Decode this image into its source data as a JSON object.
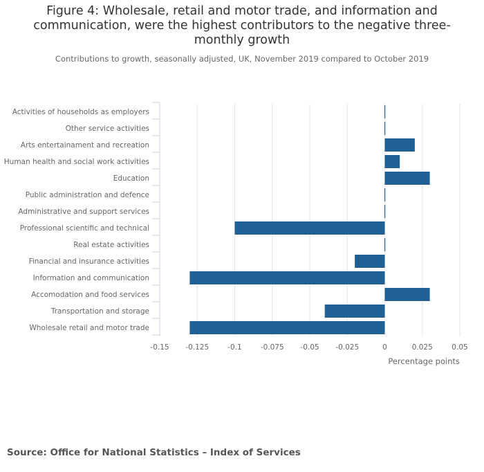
{
  "title": "Figure 4: Wholesale, retail and motor trade, and information and communication, were the highest contributors to the negative three-monthly growth",
  "subtitle": "Contributions to growth, seasonally adjusted, UK, November 2019 compared to October 2019",
  "source": "Source: Office for National Statistics – Index of Services",
  "colors": {
    "bar": "#206095",
    "grid": "#e6e6e6",
    "axis_text": "#666666"
  },
  "chart_data": {
    "type": "bar",
    "orientation": "horizontal",
    "categories": [
      "Activities of households as employers",
      "Other service activities",
      "Arts entertainament and recreation",
      "Human health and social work activities",
      "Education",
      "Public administration and defence",
      "Administrative and support services",
      "Professional scientific and technical",
      "Real estate activities",
      "Financial and insurance activities",
      "Information and communication",
      "Accomodation and food services",
      "Transportation and storage",
      "Wholesale retail and motor trade"
    ],
    "values": [
      0.0,
      0.0,
      0.02,
      0.01,
      0.03,
      0.0,
      0.0,
      -0.1,
      0.0,
      -0.02,
      -0.13,
      0.03,
      -0.04,
      -0.13
    ],
    "xlim": [
      -0.15,
      0.05
    ],
    "xticks": [
      -0.15,
      -0.125,
      -0.1,
      -0.075,
      -0.05,
      -0.025,
      0,
      0.025,
      0.05
    ],
    "xtick_labels": [
      "-0.15",
      "-0.125",
      "-0.1",
      "-0.075",
      "-0.05",
      "-0.025",
      "0",
      "0.025",
      "0.05"
    ],
    "xlabel": "Percentage points",
    "ylabel": "",
    "grid": true,
    "legend": "none"
  }
}
